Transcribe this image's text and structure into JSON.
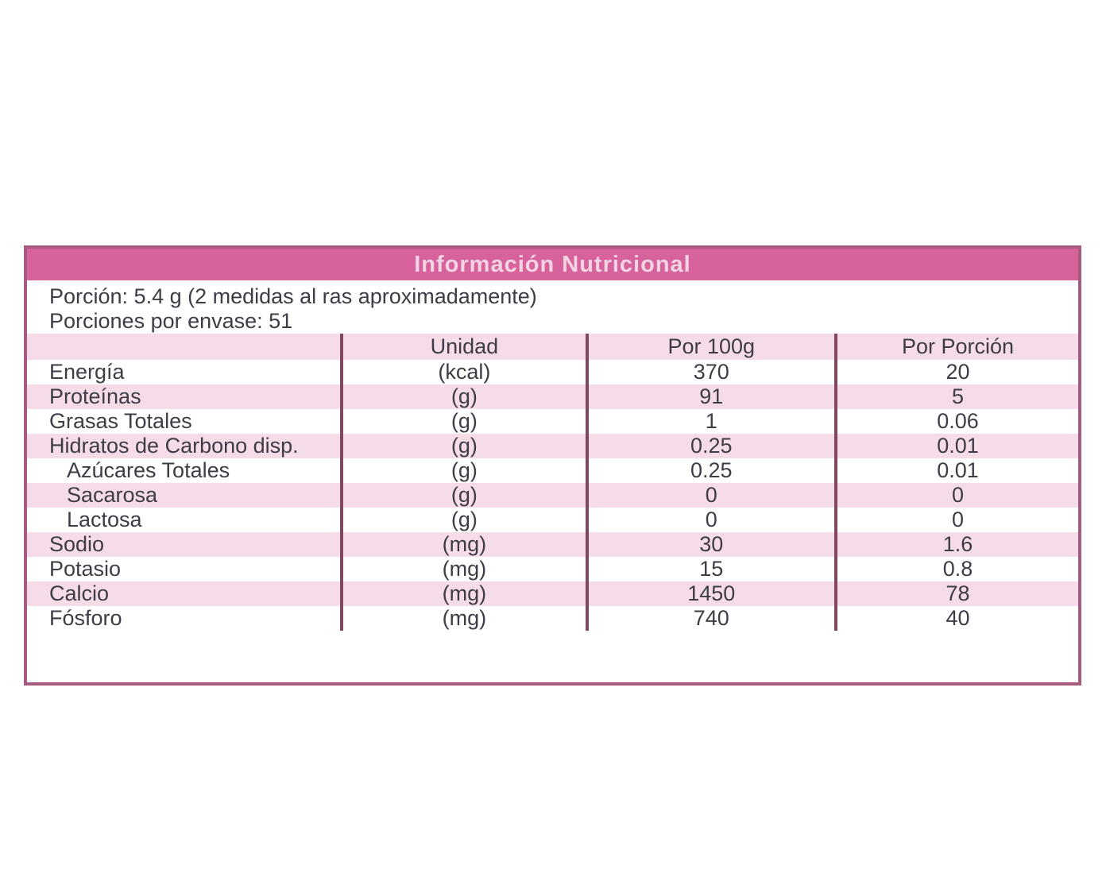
{
  "table": {
    "title": "Información Nutricional",
    "serving": {
      "line1": "Porción: 5.4 g (2 medidas al ras aproximadamente)",
      "line2": "Porciones por envase: 51"
    },
    "columns": {
      "name": "",
      "unit": "Unidad",
      "per100g": "Por 100g",
      "per_portion": "Por Porción"
    },
    "rows": [
      {
        "name": "Energía",
        "unit": "(kcal)",
        "per100g": "370",
        "per_portion": "20",
        "level": 0
      },
      {
        "name": "Proteínas",
        "unit": "(g)",
        "per100g": "91",
        "per_portion": "5",
        "level": 0
      },
      {
        "name": "Grasas Totales",
        "unit": "(g)",
        "per100g": "1",
        "per_portion": "0.06",
        "level": 0
      },
      {
        "name": "Hidratos de Carbono disp.",
        "unit": "(g)",
        "per100g": "0.25",
        "per_portion": "0.01",
        "level": 0
      },
      {
        "name": "Azúcares Totales",
        "unit": "(g)",
        "per100g": "0.25",
        "per_portion": "0.01",
        "level": 1
      },
      {
        "name": "Sacarosa",
        "unit": "(g)",
        "per100g": "0",
        "per_portion": "0",
        "level": 1
      },
      {
        "name": "Lactosa",
        "unit": "(g)",
        "per100g": "0",
        "per_portion": "0",
        "level": 1
      },
      {
        "name": "Sodio",
        "unit": "(mg)",
        "per100g": "30",
        "per_portion": "1.6",
        "level": 0
      },
      {
        "name": "Potasio",
        "unit": "(mg)",
        "per100g": "15",
        "per_portion": "0.8",
        "level": 0
      },
      {
        "name": "Calcio",
        "unit": "(mg)",
        "per100g": "1450",
        "per_portion": "78",
        "level": 0
      },
      {
        "name": "Fósforo",
        "unit": "(mg)",
        "per100g": "740",
        "per_portion": "40",
        "level": 0
      }
    ],
    "colors": {
      "header_bar": "#d7629c",
      "stripe": "#f6dbe9",
      "outer_border": "#a65a80",
      "column_divider": "#82465f",
      "title_text": "#f3d4e4",
      "body_text": "#3e3c46"
    }
  }
}
